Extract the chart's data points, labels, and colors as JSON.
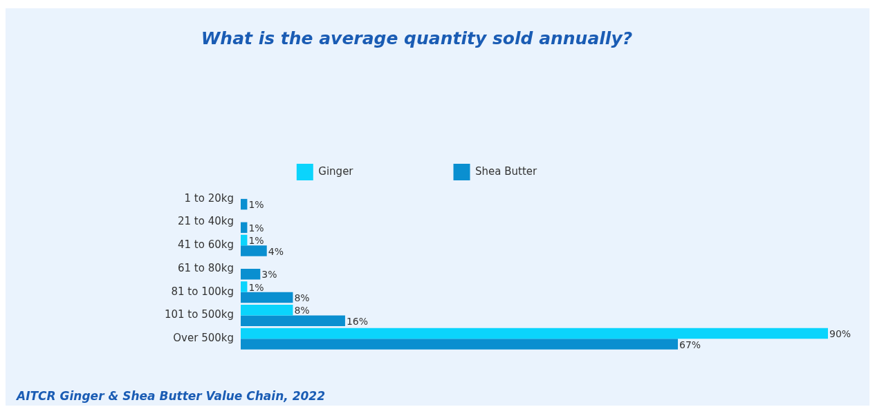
{
  "chart_data": {
    "type": "bar",
    "orientation": "horizontal",
    "title": "What is the average quantity sold annually?",
    "categories": [
      "1 to 20kg",
      "21 to 40kg",
      "41 to 60kg",
      "61 to 80kg",
      "81 to 100kg",
      "101 to 500kg",
      "Over 500kg"
    ],
    "series": [
      {
        "name": "Ginger",
        "color": "#0bd4fc",
        "values": [
          null,
          null,
          1,
          null,
          1,
          8,
          90
        ],
        "value_labels": [
          null,
          null,
          "1%",
          null,
          "1%",
          "8%",
          "90%"
        ]
      },
      {
        "name": "Shea Butter",
        "color": "#0a8fd0",
        "values": [
          1,
          1,
          4,
          3,
          8,
          16,
          67
        ],
        "value_labels": [
          "1%",
          "1%",
          "4%",
          "3%",
          "8%",
          "16%",
          "67%"
        ]
      }
    ],
    "legend": "top",
    "grid": false,
    "tick_labels": "y",
    "annotations": [
      "AITCR Ginger & Shea Butter Value Chain, 2022"
    ]
  }
}
